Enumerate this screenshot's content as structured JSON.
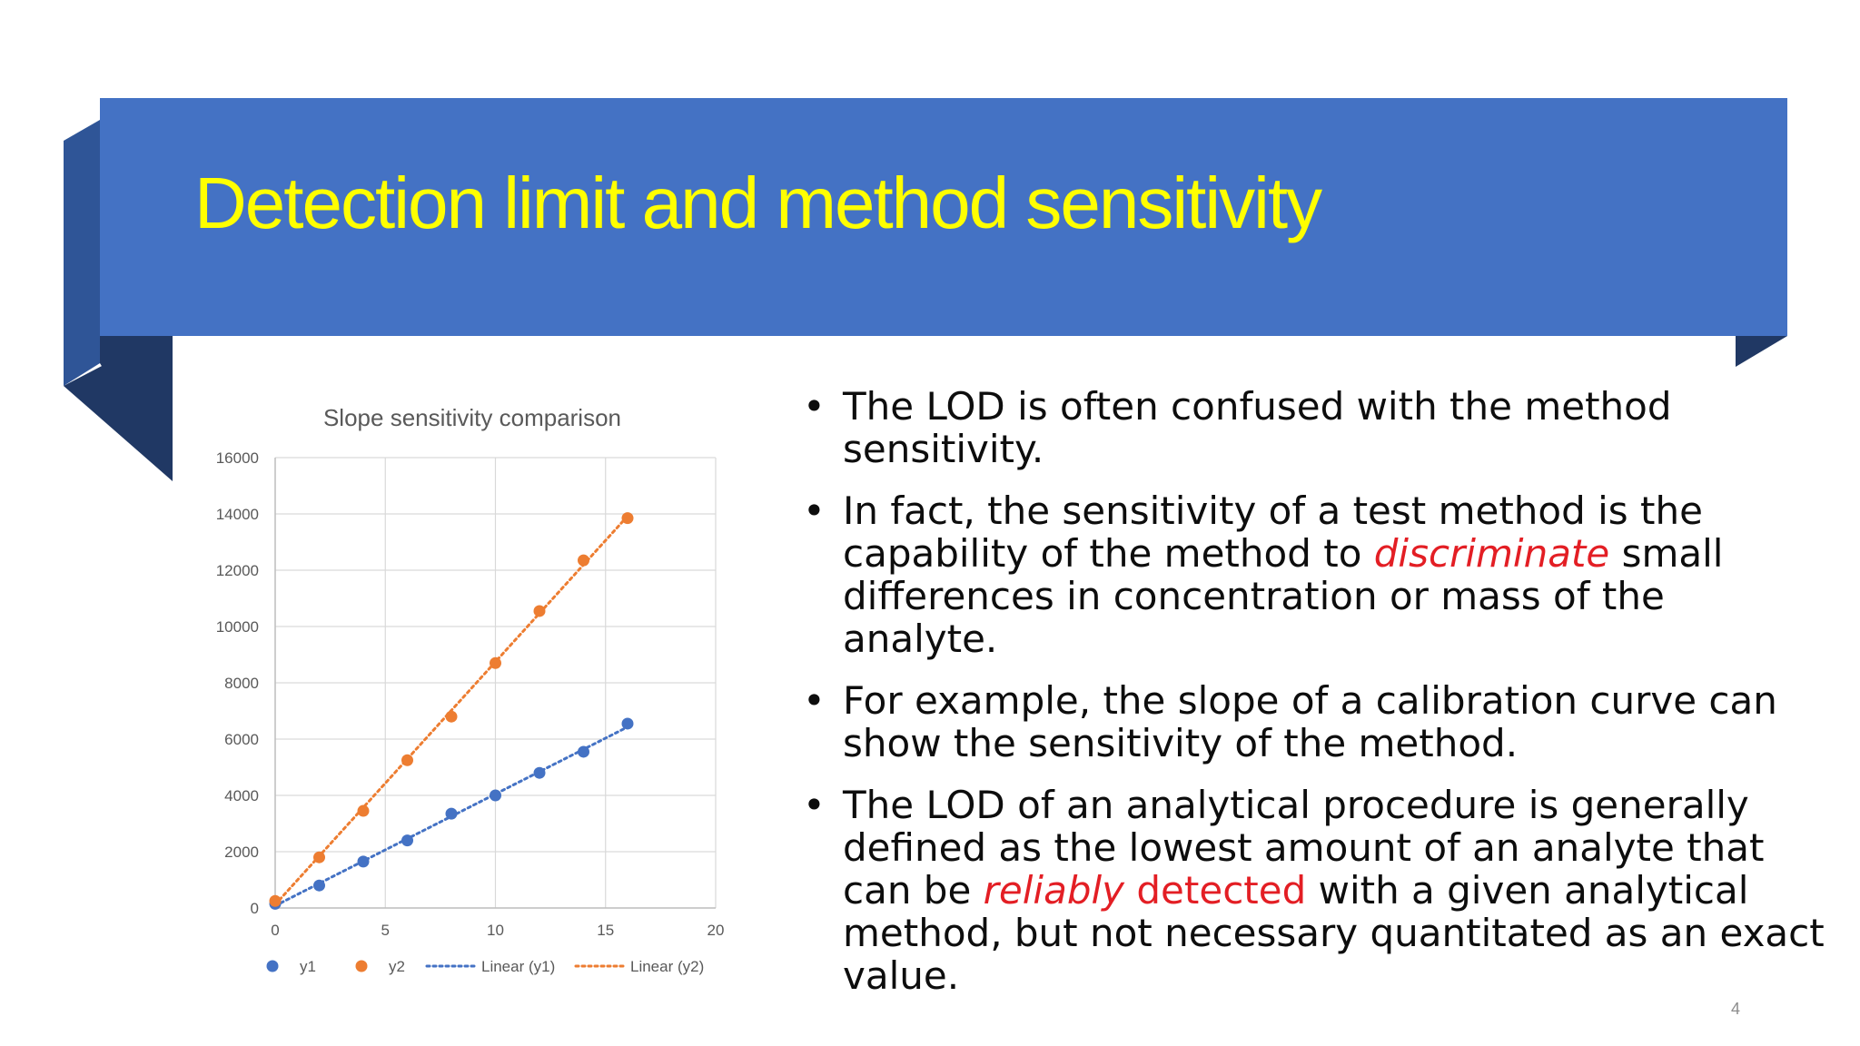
{
  "slide": {
    "title": "Detection limit and method sensitivity",
    "page_number": "4",
    "colors": {
      "banner": "#4472c4",
      "banner_fold": "#2f5597",
      "banner_shadow": "#203864",
      "title": "#ffff00",
      "highlight": "#e31e24"
    }
  },
  "bullets": [
    {
      "text": "The LOD is often confused with the method sensitivity."
    },
    {
      "pre": "In fact, the sensitivity of a test method is the capability of the method to ",
      "highlight": "discriminate",
      "post": " small differences in concentration or mass of the analyte."
    },
    {
      "text": "For example, the slope of a calibration curve can show the sensitivity of the method."
    },
    {
      "pre": "The LOD of an analytical procedure is generally defined as the lowest amount of an analyte that can be ",
      "highlight": "reliably",
      "highlight2": " detected",
      "post": " with a given analytical method, but not necessary quantitated as an exact value."
    }
  ],
  "chart_data": {
    "type": "scatter",
    "title": "Slope sensitivity comparison",
    "xlim": [
      0,
      20
    ],
    "ylim": [
      0,
      16000
    ],
    "x_ticks": [
      "0",
      "5",
      "10",
      "15",
      "20"
    ],
    "y_ticks": [
      "0",
      "2000",
      "4000",
      "6000",
      "8000",
      "10000",
      "12000",
      "14000",
      "16000"
    ],
    "grid": true,
    "legend_position": "bottom",
    "series": [
      {
        "name": "y1",
        "color": "#4472c4",
        "x": [
          0,
          2,
          4,
          6,
          8,
          10,
          12,
          14,
          16
        ],
        "y": [
          150,
          800,
          1650,
          2400,
          3350,
          4000,
          4800,
          5550,
          6550
        ]
      },
      {
        "name": "y2",
        "color": "#ed7d31",
        "x": [
          0,
          2,
          4,
          6,
          8,
          10,
          12,
          14,
          16
        ],
        "y": [
          250,
          1800,
          3450,
          5250,
          6800,
          8700,
          10550,
          12350,
          13850
        ]
      }
    ],
    "trendlines": [
      {
        "name": "Linear (y1)",
        "series": "y1",
        "color": "#4472c4",
        "from": [
          0,
          80
        ],
        "to": [
          16,
          6430
        ]
      },
      {
        "name": "Linear (y2)",
        "series": "y2",
        "color": "#ed7d31",
        "from": [
          0,
          120
        ],
        "to": [
          16,
          13920
        ]
      }
    ]
  }
}
